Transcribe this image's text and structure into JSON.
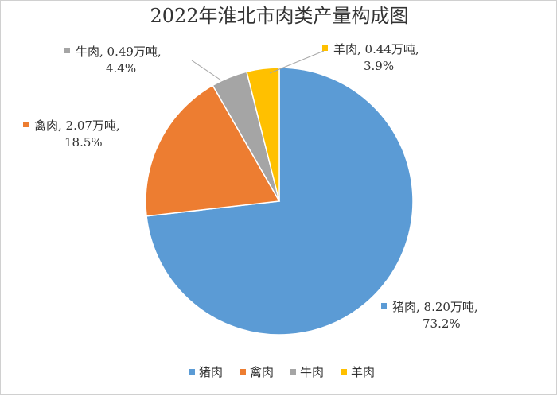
{
  "chart_data": {
    "type": "pie",
    "title": "2022年淮北市肉类产量构成图",
    "slices": [
      {
        "name": "猪肉",
        "value": 8.2,
        "percent": "73.2%",
        "label_line1": "猪肉, 8.20万吨,",
        "label_line2": "73.2%",
        "color": "#5B9BD5"
      },
      {
        "name": "禽肉",
        "value": 2.07,
        "percent": "18.5%",
        "label_line1": "禽肉, 2.07万吨,",
        "label_line2": "18.5%",
        "color": "#ED7D31"
      },
      {
        "name": "牛肉",
        "value": 0.49,
        "percent": "4.4%",
        "label_line1": "牛肉, 0.49万吨,",
        "label_line2": "4.4%",
        "color": "#A5A5A5"
      },
      {
        "name": "羊肉",
        "value": 0.44,
        "percent": "3.9%",
        "label_line1": "羊肉, 0.44万吨,",
        "label_line2": "3.9%",
        "color": "#FFC000"
      }
    ],
    "legend": {
      "position": "bottom",
      "items": [
        "猪肉",
        "禽肉",
        "牛肉",
        "羊肉"
      ]
    }
  }
}
